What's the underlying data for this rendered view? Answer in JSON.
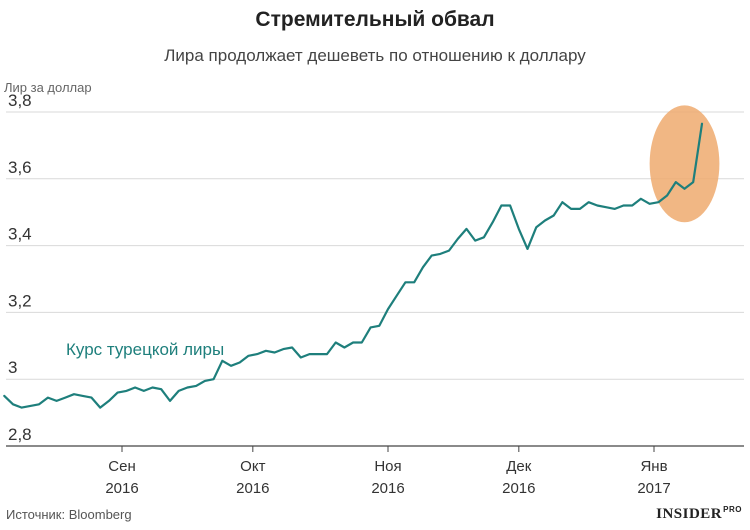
{
  "header": {
    "title": "Стремительный обвал",
    "subtitle": "Лира продолжает дешеветь по отношению к доллару"
  },
  "footer": {
    "source": "Источник: Bloomberg",
    "brand": "INSIDER",
    "brand_suffix": "PRO"
  },
  "colors": {
    "line": "#1e7f7c",
    "highlight": "#eeaa6f",
    "grid": "#d9d9d9"
  },
  "chart_data": {
    "type": "line",
    "title": "Стремительный обвал",
    "subtitle": "Лира продолжает дешеветь по отношению к доллару",
    "ylabel": "Лир за доллар",
    "ylim": [
      2.8,
      3.8
    ],
    "yticks": [
      2.8,
      3.0,
      3.2,
      3.4,
      3.6,
      3.8
    ],
    "ytick_labels": [
      "2,8",
      "3",
      "3,2",
      "3,4",
      "3,6",
      "3,8"
    ],
    "grid": true,
    "xticks": [
      {
        "date": "2016-09-01",
        "month": "Сен",
        "year": "2016"
      },
      {
        "date": "2016-10-01",
        "month": "Окт",
        "year": "2016"
      },
      {
        "date": "2016-11-01",
        "month": "Ноя",
        "year": "2016"
      },
      {
        "date": "2016-12-01",
        "month": "Дек",
        "year": "2016"
      },
      {
        "date": "2017-01-01",
        "month": "Янв",
        "year": "2017"
      }
    ],
    "series": [
      {
        "name": "Курс турецкой лиры",
        "x": [
          "2016-08-05",
          "2016-08-07",
          "2016-08-09",
          "2016-08-11",
          "2016-08-13",
          "2016-08-15",
          "2016-08-17",
          "2016-08-19",
          "2016-08-21",
          "2016-08-23",
          "2016-08-25",
          "2016-08-27",
          "2016-08-29",
          "2016-08-31",
          "2016-09-02",
          "2016-09-04",
          "2016-09-06",
          "2016-09-08",
          "2016-09-10",
          "2016-09-12",
          "2016-09-14",
          "2016-09-16",
          "2016-09-18",
          "2016-09-20",
          "2016-09-22",
          "2016-09-24",
          "2016-09-26",
          "2016-09-28",
          "2016-09-30",
          "2016-10-02",
          "2016-10-04",
          "2016-10-06",
          "2016-10-08",
          "2016-10-10",
          "2016-10-12",
          "2016-10-14",
          "2016-10-16",
          "2016-10-18",
          "2016-10-20",
          "2016-10-22",
          "2016-10-24",
          "2016-10-26",
          "2016-10-28",
          "2016-10-30",
          "2016-11-01",
          "2016-11-03",
          "2016-11-05",
          "2016-11-07",
          "2016-11-09",
          "2016-11-11",
          "2016-11-13",
          "2016-11-15",
          "2016-11-17",
          "2016-11-19",
          "2016-11-21",
          "2016-11-23",
          "2016-11-25",
          "2016-11-27",
          "2016-11-29",
          "2016-12-01",
          "2016-12-03",
          "2016-12-05",
          "2016-12-07",
          "2016-12-09",
          "2016-12-11",
          "2016-12-13",
          "2016-12-15",
          "2016-12-17",
          "2016-12-19",
          "2016-12-21",
          "2016-12-23",
          "2016-12-25",
          "2016-12-27",
          "2016-12-29",
          "2016-12-31",
          "2017-01-02",
          "2017-01-04",
          "2017-01-06",
          "2017-01-08",
          "2017-01-10",
          "2017-01-12"
        ],
        "y": [
          2.95,
          2.925,
          2.915,
          2.92,
          2.925,
          2.945,
          2.935,
          2.945,
          2.955,
          2.95,
          2.945,
          2.915,
          2.935,
          2.96,
          2.965,
          2.975,
          2.965,
          2.975,
          2.97,
          2.935,
          2.965,
          2.975,
          2.98,
          2.995,
          3.0,
          3.055,
          3.04,
          3.05,
          3.07,
          3.075,
          3.085,
          3.08,
          3.09,
          3.095,
          3.065,
          3.075,
          3.075,
          3.075,
          3.11,
          3.095,
          3.11,
          3.11,
          3.155,
          3.16,
          3.21,
          3.25,
          3.29,
          3.29,
          3.335,
          3.37,
          3.375,
          3.385,
          3.42,
          3.45,
          3.415,
          3.425,
          3.47,
          3.52,
          3.52,
          3.45,
          3.39,
          3.455,
          3.475,
          3.49,
          3.53,
          3.51,
          3.51,
          3.53,
          3.52,
          3.515,
          3.51,
          3.52,
          3.52,
          3.54,
          3.525,
          3.53,
          3.55,
          3.59,
          3.57,
          3.59,
          3.765
        ]
      }
    ],
    "annotations": [
      {
        "text": "Курс турецкой лиры",
        "type": "series-label"
      }
    ],
    "highlight": {
      "shape": "ellipse",
      "x_range": [
        "2016-12-31",
        "2017-01-16"
      ],
      "y_range": [
        3.47,
        3.82
      ]
    }
  }
}
